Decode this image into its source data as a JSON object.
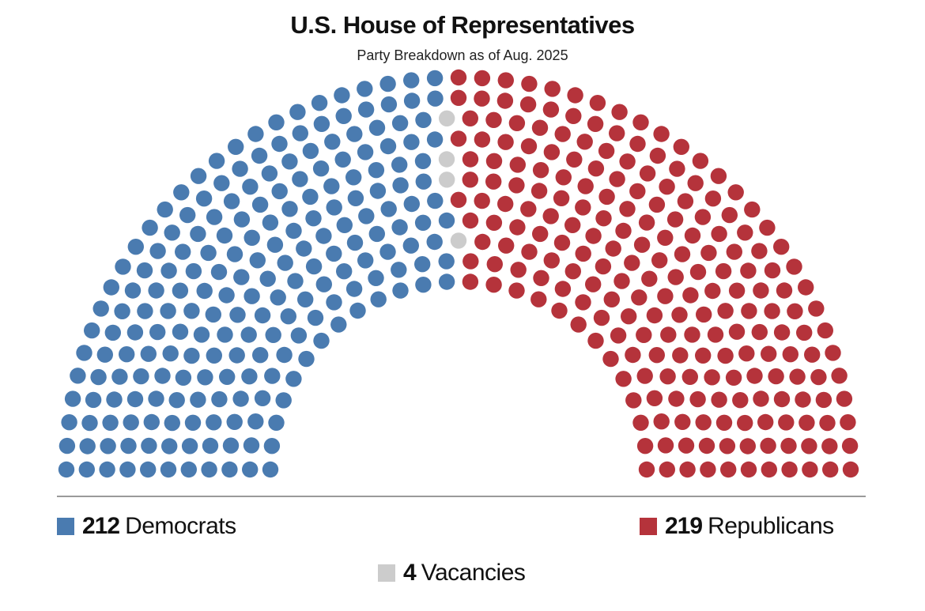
{
  "header": {
    "title": "U.S. House of Representatives",
    "subtitle": "Party Breakdown as of Aug. 2025"
  },
  "legend": [
    {
      "key": "dem",
      "count": "212",
      "label": "Democrats",
      "color": "#4a7bb0"
    },
    {
      "key": "rep",
      "count": "219",
      "label": "Republicans",
      "color": "#b5333b"
    },
    {
      "key": "vac",
      "count": "4",
      "label": "Vacancies",
      "color": "#cccccc"
    }
  ],
  "chart_data": {
    "type": "parliament",
    "title": "U.S. House of Representatives",
    "subtitle": "Party Breakdown as of Aug. 2025",
    "total_seats": 435,
    "rows": 11,
    "categories": [
      "Democrats",
      "Vacancies",
      "Republicans"
    ],
    "values": [
      212,
      4,
      219
    ],
    "colors": [
      "#4a7bb0",
      "#cccccc",
      "#b5333b"
    ],
    "legend_position": "bottom"
  }
}
